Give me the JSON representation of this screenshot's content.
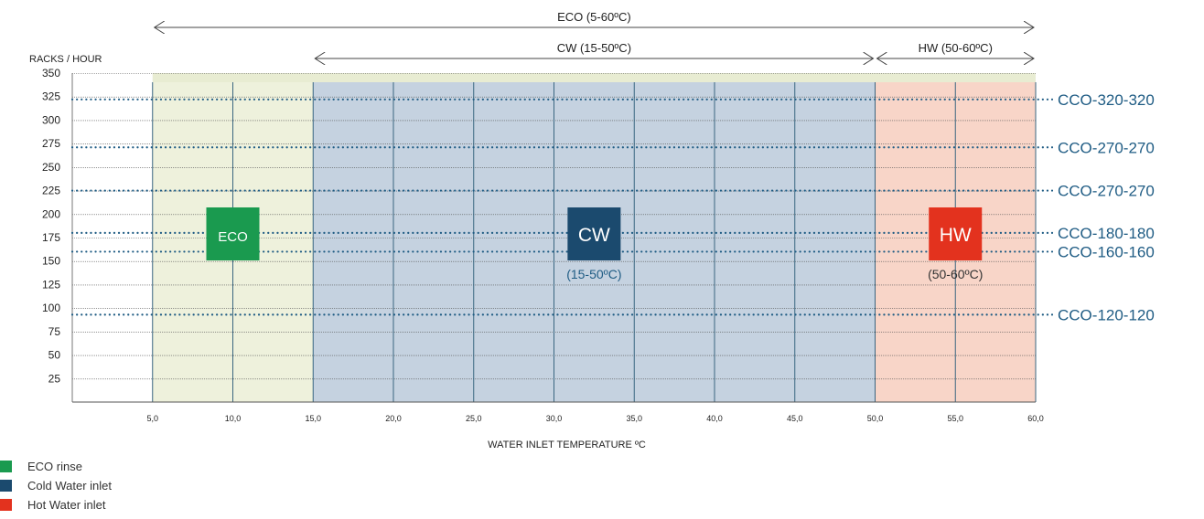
{
  "chart_data": {
    "type": "line",
    "ylabel": "RACKS / HOUR",
    "xlabel": "WATER INLET TEMPERATURE ºC",
    "xlim": [
      0,
      60
    ],
    "ylim": [
      0,
      350
    ],
    "x_ticks": [
      "5,0",
      "10,0",
      "15,0",
      "20,0",
      "25,0",
      "30,0",
      "35,0",
      "40,0",
      "45,0",
      "50,0",
      "55,0",
      "60,0"
    ],
    "y_ticks": [
      "350",
      "325",
      "300",
      "275",
      "250",
      "225",
      "200",
      "175",
      "150",
      "125",
      "100",
      "75",
      "50",
      "25"
    ],
    "y_tick_values": [
      350,
      325,
      300,
      275,
      250,
      225,
      200,
      175,
      150,
      125,
      100,
      75,
      50,
      25
    ],
    "grid": true,
    "regions": [
      {
        "id": "eco",
        "from": 5,
        "to": 15,
        "color": "#eef1dc",
        "label": "ECO",
        "label_color": "#1a9a4f",
        "sublabel": ""
      },
      {
        "id": "cw",
        "from": 15,
        "to": 50,
        "color": "#c5d2e0",
        "label": "CW",
        "label_color": "#1b4a6e",
        "sublabel": "(15-50ºC)"
      },
      {
        "id": "hw",
        "from": 50,
        "to": 60,
        "color": "#f8d5c8",
        "label": "HW",
        "label_color": "#e3321e",
        "sublabel": "(50-60ºC)"
      }
    ],
    "top_band": {
      "from": 5,
      "to": 60,
      "color": "#e8ecd2"
    },
    "ranges": [
      {
        "label": "ECO (5-60ºC)",
        "from": 5,
        "to": 60
      },
      {
        "label": "CW (15-50ºC)",
        "from": 15,
        "to": 50
      },
      {
        "label": "HW (50-60ºC)",
        "from": 50,
        "to": 60
      }
    ],
    "series": [
      {
        "name": "CCO-320-320",
        "value": 322
      },
      {
        "name": "CCO-270-270",
        "value": 271
      },
      {
        "name": "CCO-270-270",
        "value": 225
      },
      {
        "name": "CCO-180-180",
        "value": 180
      },
      {
        "name": "CCO-160-160",
        "value": 160
      },
      {
        "name": "CCO-120-120",
        "value": 93
      }
    ],
    "series_color": "#1f5c84"
  },
  "legend": [
    {
      "label": "ECO rinse",
      "color": "#1a9a4f"
    },
    {
      "label": "Cold Water inlet",
      "color": "#1b4a6e"
    },
    {
      "label": "Hot Water inlet",
      "color": "#e3321e"
    }
  ]
}
